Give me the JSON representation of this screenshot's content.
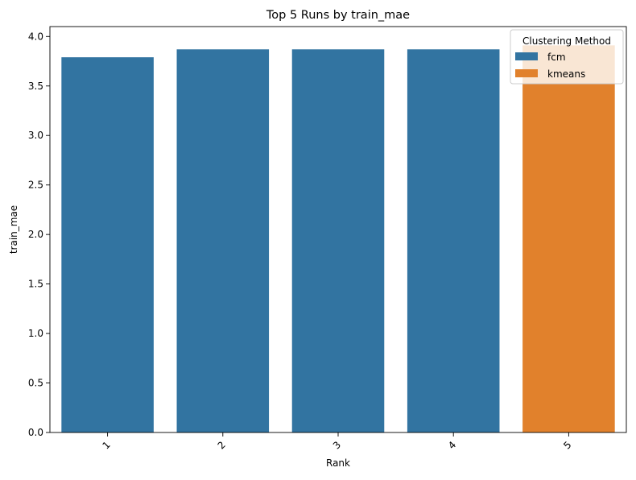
{
  "chart_data": {
    "type": "bar",
    "title": "Top 5 Runs by train_mae",
    "xlabel": "Rank",
    "ylabel": "train_mae",
    "categories": [
      "1",
      "2",
      "3",
      "4",
      "5"
    ],
    "values": [
      3.79,
      3.87,
      3.87,
      3.87,
      3.91
    ],
    "hue": [
      "fcm",
      "fcm",
      "fcm",
      "fcm",
      "kmeans"
    ],
    "ylim": [
      0,
      4.1
    ],
    "yticks": [
      0.0,
      0.5,
      1.0,
      1.5,
      2.0,
      2.5,
      3.0,
      3.5,
      4.0
    ],
    "ytick_labels": [
      "0.0",
      "0.5",
      "1.0",
      "1.5",
      "2.0",
      "2.5",
      "3.0",
      "3.5",
      "4.0"
    ],
    "grid": false,
    "legend": {
      "title": "Clustering Method",
      "placement": "top-right",
      "entries": [
        {
          "name": "fcm",
          "color": "#3274a1"
        },
        {
          "name": "kmeans",
          "color": "#e1812c"
        }
      ]
    }
  }
}
